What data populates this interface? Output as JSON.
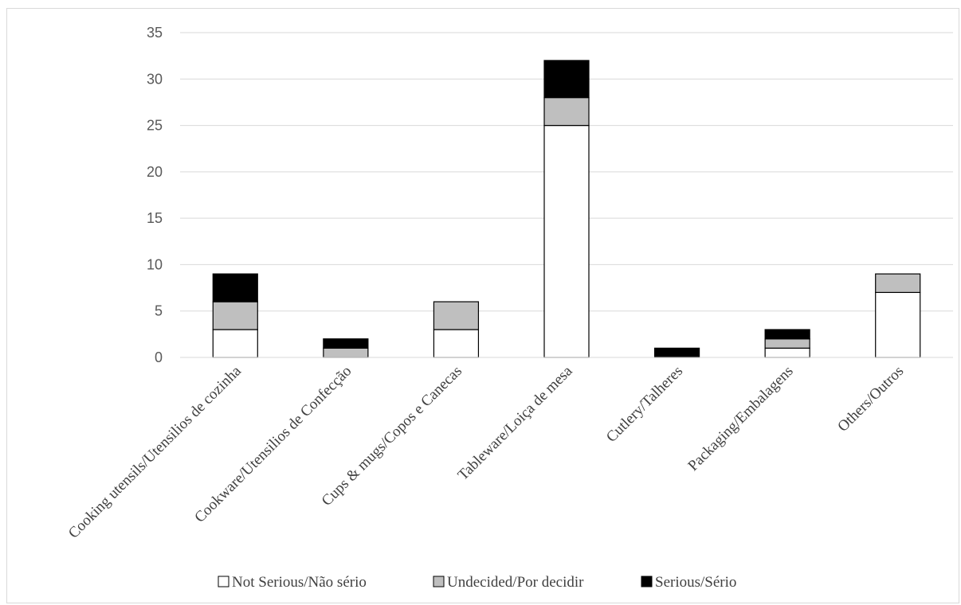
{
  "chart_data": {
    "type": "bar",
    "stacked": true,
    "categories": [
      "Cooking utensils/Utensilios de cozinha",
      "Cookware/Utensilios de Confecção",
      "Cups & mugs/Copos e Canecas",
      "Tableware/Loiça de mesa",
      "Cutlery/Talheres",
      "Packaging/Embalagens",
      "Others/Outros"
    ],
    "series": [
      {
        "name": "Not Serious/Não sério",
        "color": "#ffffff",
        "values": [
          3,
          0,
          3,
          25,
          0,
          1,
          7
        ]
      },
      {
        "name": "Undecided/Por decidir",
        "color": "#bfbfbf",
        "values": [
          3,
          1,
          3,
          3,
          0,
          1,
          2
        ]
      },
      {
        "name": "Serious/Sério",
        "color": "#000000",
        "values": [
          3,
          1,
          0,
          4,
          1,
          1,
          0
        ]
      }
    ],
    "ylim": [
      0,
      35
    ],
    "yticks": [
      0,
      5,
      10,
      15,
      20,
      25,
      30,
      35
    ],
    "grid": true,
    "legend_position": "bottom",
    "title": "",
    "xlabel": "",
    "ylabel": ""
  }
}
